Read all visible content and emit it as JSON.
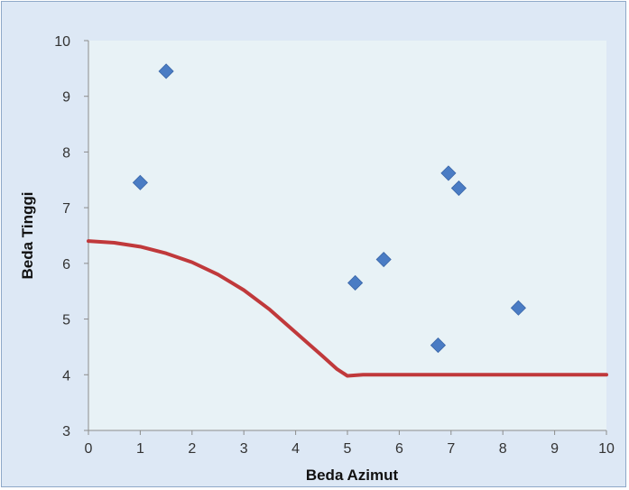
{
  "chart_data": {
    "type": "scatter",
    "xlabel": "Beda Azimut",
    "ylabel": "Beda Tinggi",
    "xlim": [
      0,
      10
    ],
    "ylim": [
      3,
      10
    ],
    "x_ticks": [
      "0",
      "1",
      "2",
      "3",
      "4",
      "5",
      "6",
      "7",
      "8",
      "9",
      "10"
    ],
    "y_ticks": [
      "3",
      "4",
      "5",
      "6",
      "7",
      "8",
      "9",
      "10"
    ],
    "grid": false,
    "legend": false,
    "colors": {
      "plot_background": "#e8f2f6",
      "frame_background": "#dde8f5",
      "points": "#4a7cc4",
      "curve": "#c0393b"
    },
    "series": [
      {
        "type": "scatter",
        "marker": "diamond",
        "points": [
          [
            1.0,
            7.45
          ],
          [
            1.5,
            9.45
          ],
          [
            5.15,
            5.65
          ],
          [
            5.7,
            6.07
          ],
          [
            6.75,
            4.53
          ],
          [
            6.95,
            7.62
          ],
          [
            7.15,
            7.35
          ],
          [
            8.3,
            5.2
          ]
        ]
      },
      {
        "type": "line",
        "points": [
          [
            0.0,
            6.4
          ],
          [
            0.5,
            6.37
          ],
          [
            1.0,
            6.3
          ],
          [
            1.5,
            6.18
          ],
          [
            2.0,
            6.02
          ],
          [
            2.5,
            5.8
          ],
          [
            3.0,
            5.52
          ],
          [
            3.5,
            5.17
          ],
          [
            4.0,
            4.76
          ],
          [
            4.5,
            4.35
          ],
          [
            4.8,
            4.1
          ],
          [
            5.0,
            3.98
          ],
          [
            5.3,
            4.0
          ],
          [
            6.0,
            4.0
          ],
          [
            7.0,
            4.0
          ],
          [
            8.0,
            4.0
          ],
          [
            9.0,
            4.0
          ],
          [
            10.0,
            4.0
          ]
        ]
      }
    ]
  }
}
